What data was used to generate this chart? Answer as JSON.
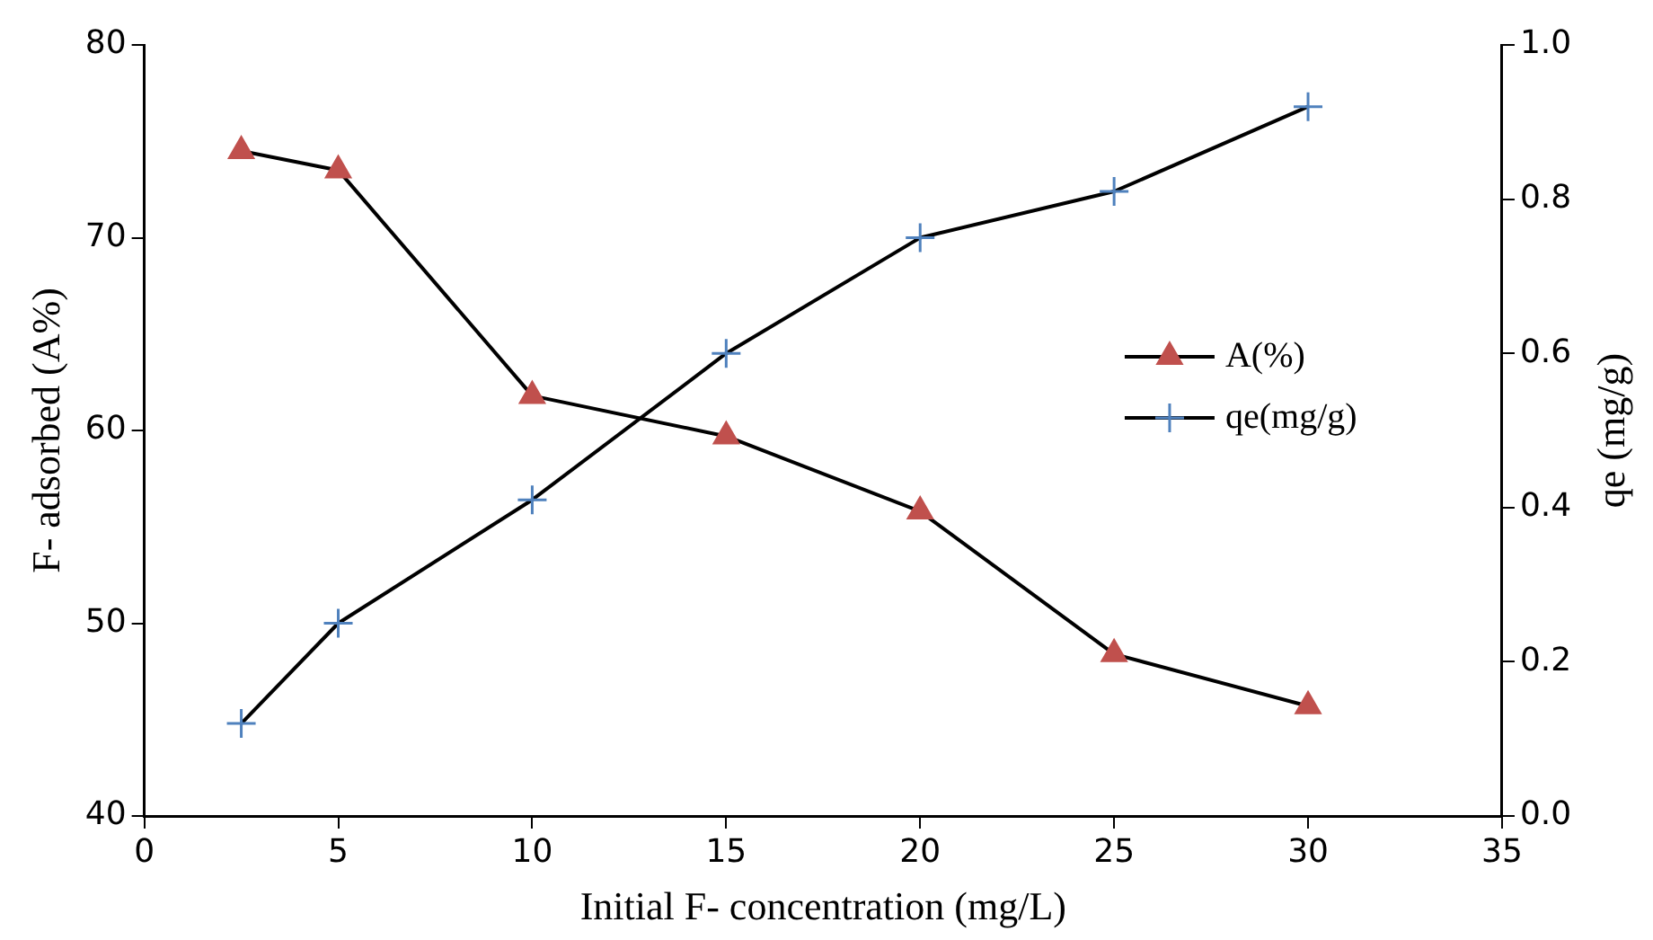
{
  "chart_data": {
    "type": "line",
    "xlabel": "Initial F- concentration (mg/L)",
    "ylabel": "F- adsorbed (A%)",
    "y2label": "qe (mg/g)",
    "x": [
      2.5,
      5,
      10,
      15,
      20,
      25,
      30
    ],
    "series": [
      {
        "name": "A(%)",
        "color": "#c0504d",
        "marker": "triangle",
        "values": [
          74.5,
          73.5,
          61.8,
          59.7,
          55.8,
          48.4,
          45.7
        ]
      },
      {
        "name": "qe(mg/g)",
        "color": "#4f81bd",
        "marker": "cross",
        "axis": "y2",
        "values": [
          0.12,
          0.25,
          0.41,
          0.6,
          0.75,
          0.81,
          0.92
        ]
      }
    ],
    "xlim": [
      0,
      35
    ],
    "xticks": [
      0,
      5,
      10,
      15,
      20,
      25,
      30,
      35
    ],
    "ylim": [
      40,
      80
    ],
    "yticks": [
      40,
      50,
      60,
      70,
      80
    ],
    "y2lim": [
      0,
      1
    ],
    "y2ticks": [
      {
        "value": 0,
        "label": "0.0"
      },
      {
        "value": 0.2,
        "label": "0.2"
      },
      {
        "value": 0.4,
        "label": "0.4"
      },
      {
        "value": 0.6,
        "label": "0.6"
      },
      {
        "value": 0.8,
        "label": "0.8"
      },
      {
        "value": 1,
        "label": "1.0"
      }
    ],
    "grid": false,
    "legend": "right",
    "line_style": "solid"
  }
}
